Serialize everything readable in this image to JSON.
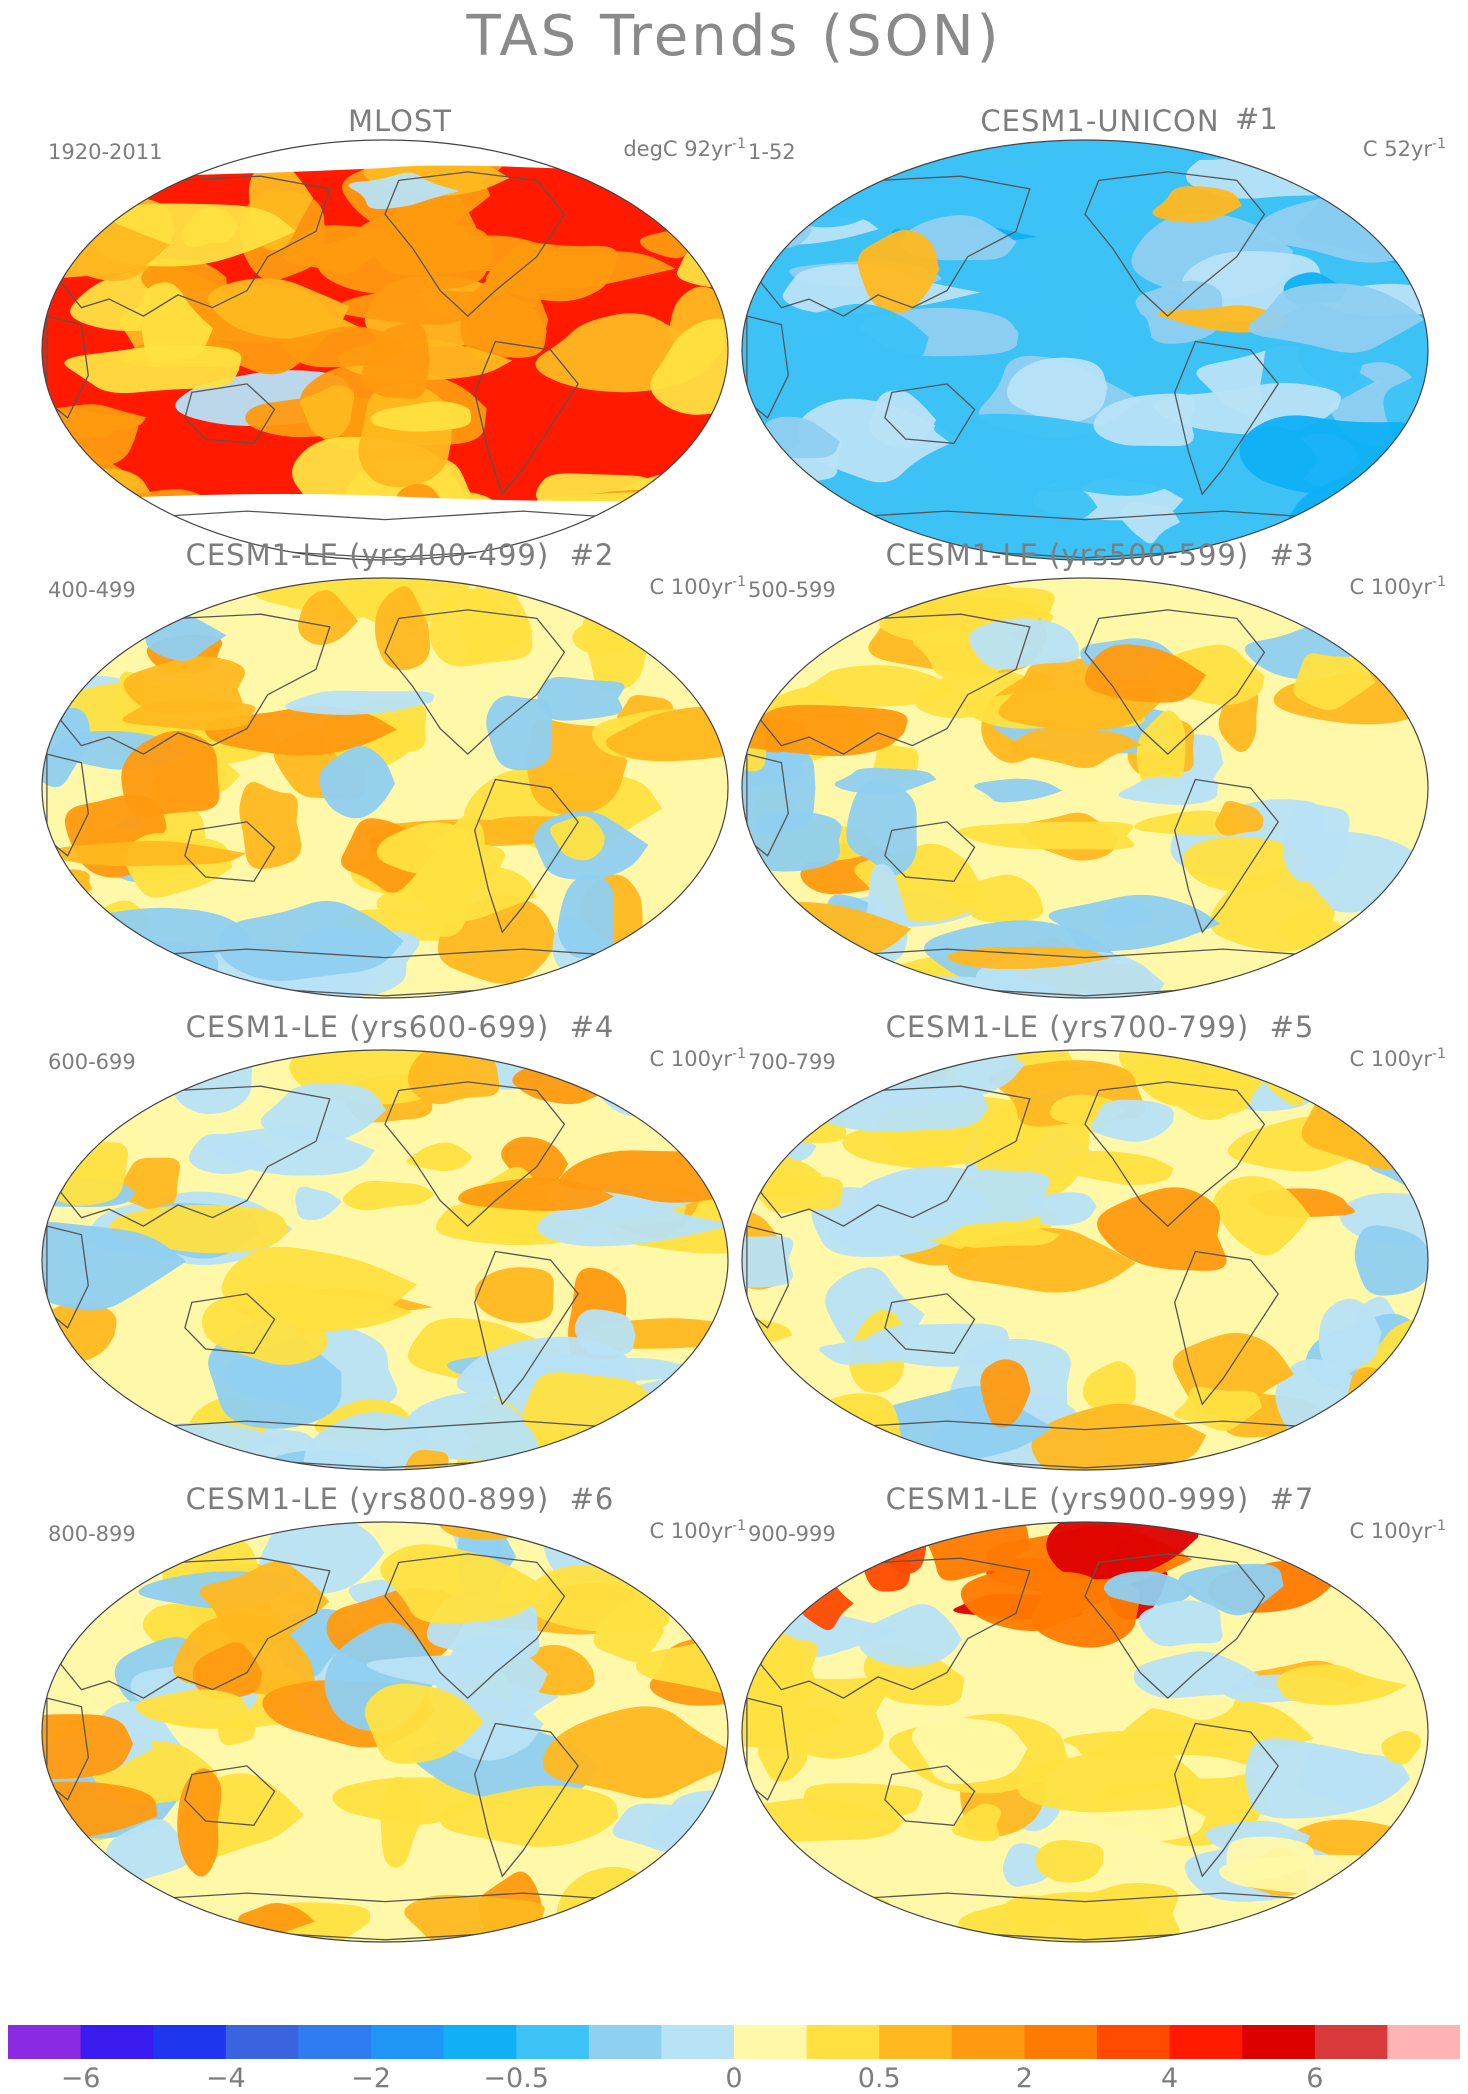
{
  "title": "TAS Trends (SON)",
  "panels": [
    {
      "title": "MLOST",
      "number": "",
      "period": "1920-2011",
      "units_prefix": "degC 92yr",
      "units_exp": "-1",
      "mean_level": 16,
      "pattern": "obs"
    },
    {
      "title": "CESM1-UNICON",
      "number": "#1",
      "period": "1-52",
      "units_prefix": "C 52yr",
      "units_exp": "-1",
      "mean_level": 7,
      "pattern": "cool"
    },
    {
      "title": "CESM1-LE (yrs400-499)",
      "number": "#2",
      "period": "400-499",
      "units_prefix": "C 100yr",
      "units_exp": "-1",
      "mean_level": 10,
      "pattern": "mixed"
    },
    {
      "title": "CESM1-LE (yrs500-599)",
      "number": "#3",
      "period": "500-599",
      "units_prefix": "C 100yr",
      "units_exp": "-1",
      "mean_level": 10,
      "pattern": "mixed"
    },
    {
      "title": "CESM1-LE (yrs600-699)",
      "number": "#4",
      "period": "600-699",
      "units_prefix": "C 100yr",
      "units_exp": "-1",
      "mean_level": 10,
      "pattern": "mixed"
    },
    {
      "title": "CESM1-LE (yrs700-799)",
      "number": "#5",
      "period": "700-799",
      "units_prefix": "C 100yr",
      "units_exp": "-1",
      "mean_level": 10,
      "pattern": "mixed"
    },
    {
      "title": "CESM1-LE (yrs800-899)",
      "number": "#6",
      "period": "800-899",
      "units_prefix": "C 100yr",
      "units_exp": "-1",
      "mean_level": 10,
      "pattern": "mixed"
    },
    {
      "title": "CESM1-LE (yrs900-999)",
      "number": "#7",
      "period": "900-999",
      "units_prefix": "C 100yr",
      "units_exp": "-1",
      "mean_level": 10,
      "pattern": "warm"
    }
  ],
  "colorbar": {
    "colors": [
      "#8a2be2",
      "#3b1cf0",
      "#1f36f0",
      "#3a63e0",
      "#2f7cf0",
      "#1f95f5",
      "#0fb0f5",
      "#3cc2f5",
      "#8fcff0",
      "#b8e2f5",
      "#fff8a8",
      "#ffe040",
      "#ffb820",
      "#ff9a10",
      "#ff7a00",
      "#ff4a00",
      "#ff1a00",
      "#dd0000",
      "#d83a3a",
      "#ffb3b3"
    ],
    "labels": [
      "−6",
      "−4",
      "−2",
      "−0.5",
      "0",
      "0.5",
      "2",
      "4",
      "6"
    ],
    "label_after_box": [
      1,
      3,
      5,
      7,
      10,
      12,
      14,
      16,
      18
    ]
  }
}
